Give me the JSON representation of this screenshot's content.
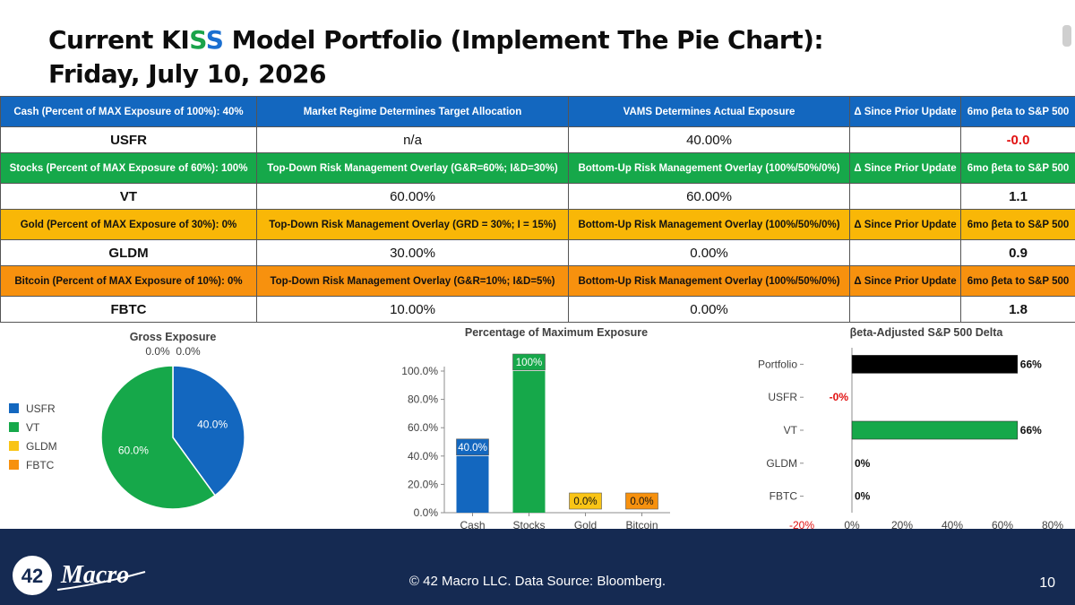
{
  "title": {
    "line1_pre": "Current KI",
    "line1_s1": "S",
    "line1_s2": "S",
    "line1_post": " Model Portfolio (Implement The Pie Chart):",
    "line2": "Friday, July 10, 2026"
  },
  "table": {
    "sections": [
      {
        "color": "blue",
        "headers": [
          "Cash (Percent of MAX Exposure of 100%): 40%",
          "Market Regime Determines Target Allocation",
          "VAMS Determines Actual Exposure",
          "Δ Since Prior Update",
          "6mo βeta to S&P 500"
        ],
        "row": {
          "ticker": "USFR",
          "target": "n/a",
          "actual": "40.00%",
          "delta": "",
          "beta": "-0.0",
          "beta_color": "#e11111"
        }
      },
      {
        "color": "green",
        "headers": [
          "Stocks (Percent of MAX Exposure of 60%): 100%",
          "Top-Down Risk Management Overlay (G&R=60%; I&D=30%)",
          "Bottom-Up Risk Management Overlay (100%/50%/0%)",
          "Δ Since Prior Update",
          "6mo βeta to S&P 500"
        ],
        "row": {
          "ticker": "VT",
          "target": "60.00%",
          "actual": "60.00%",
          "delta": "",
          "beta": "1.1",
          "beta_color": "#111111"
        }
      },
      {
        "color": "gold",
        "headers": [
          "Gold (Percent of MAX Exposure of 30%): 0%",
          "Top-Down Risk Management Overlay (GRD = 30%; I = 15%)",
          "Bottom-Up Risk Management Overlay (100%/50%/0%)",
          "Δ Since Prior Update",
          "6mo βeta to S&P 500"
        ],
        "row": {
          "ticker": "GLDM",
          "target": "30.00%",
          "actual": "0.00%",
          "delta": "",
          "beta": "0.9",
          "beta_color": "#111111"
        }
      },
      {
        "color": "orange",
        "headers": [
          "Bitcoin (Percent of MAX Exposure of 10%): 0%",
          "Top-Down Risk Management Overlay (G&R=10%; I&D=5%)",
          "Bottom-Up Risk Management Overlay (100%/50%/0%)",
          "Δ Since Prior Update",
          "6mo βeta to S&P 500"
        ],
        "row": {
          "ticker": "FBTC",
          "target": "10.00%",
          "actual": "0.00%",
          "delta": "",
          "beta": "1.8",
          "beta_color": "#111111"
        }
      }
    ]
  },
  "colors": {
    "blue": "#1367bf",
    "green": "#16a84a",
    "gold": "#f9c416",
    "orange": "#f7910e",
    "black": "#000000",
    "red": "#e11111"
  },
  "chart_data": [
    {
      "type": "pie",
      "title": "Gross Exposure",
      "labels": [
        "USFR",
        "VT",
        "GLDM",
        "FBTC"
      ],
      "values": [
        40.0,
        60.0,
        0.0,
        0.0
      ],
      "data_labels": [
        "40.0%",
        "60.0%",
        "0.0%",
        "0.0%"
      ],
      "colors": [
        "#1367bf",
        "#16a84a",
        "#f9c416",
        "#f7910e"
      ],
      "legend": "left"
    },
    {
      "type": "bar",
      "title": "Percentage of Maximum Exposure",
      "categories": [
        "Cash",
        "Stocks",
        "Gold",
        "Bitcoin"
      ],
      "values": [
        40.0,
        100.0,
        0.0,
        0.0
      ],
      "data_labels": [
        "40.0%",
        "100%",
        "0.0%",
        "0.0%"
      ],
      "colors": [
        "#1367bf",
        "#16a84a",
        "#f9c416",
        "#f7910e"
      ],
      "ylim": [
        0,
        100
      ],
      "yticks": [
        "0.0%",
        "20.0%",
        "40.0%",
        "60.0%",
        "80.0%",
        "100.0%"
      ]
    },
    {
      "type": "bar",
      "orientation": "horizontal",
      "title": "βeta-Adjusted S&P 500 Delta",
      "categories": [
        "Portfolio",
        "USFR",
        "VT",
        "GLDM",
        "FBTC"
      ],
      "values": [
        66,
        -0.1,
        66,
        0,
        0
      ],
      "data_labels": [
        "66%",
        "-0%",
        "66%",
        "0%",
        "0%"
      ],
      "colors": [
        "#000000",
        "#e11111",
        "#16a84a",
        "#f9c416",
        "#f7910e"
      ],
      "label_colors": [
        "#111111",
        "#e11111",
        "#111111",
        "#111111",
        "#111111"
      ],
      "xlim": [
        -20,
        80
      ],
      "xticks": [
        "-20%",
        "0%",
        "20%",
        "40%",
        "60%",
        "80%"
      ]
    }
  ],
  "footer": {
    "copyright": "© 42 Macro LLC. Data Source: Bloomberg.",
    "page": "10",
    "logo_number": "42",
    "logo_text": "Macro"
  }
}
